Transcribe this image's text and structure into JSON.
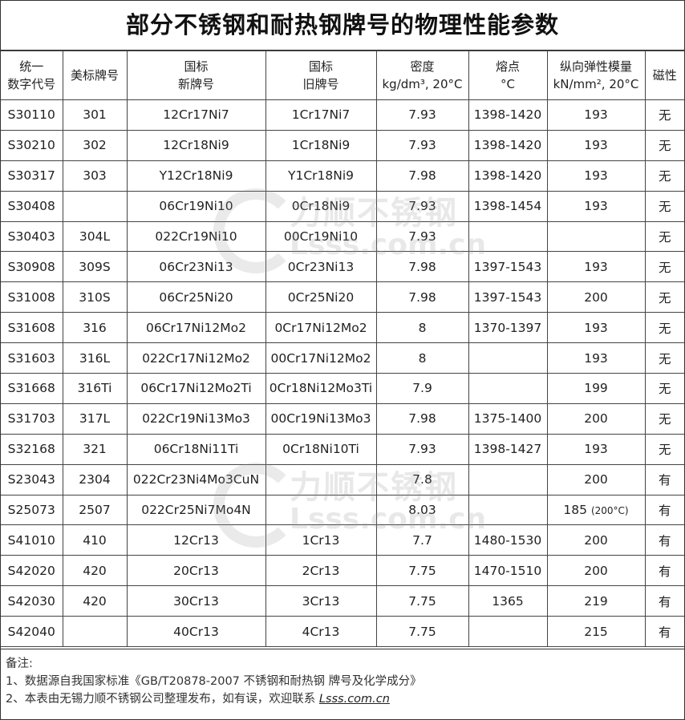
{
  "title": "部分不锈钢和耐热钢牌号的物理性能参数",
  "headers": [
    {
      "l1": "统一",
      "l2": "数字代号"
    },
    {
      "l1": "美标牌号",
      "l2": ""
    },
    {
      "l1": "国标",
      "l2": "新牌号"
    },
    {
      "l1": "国标",
      "l2": "旧牌号"
    },
    {
      "l1": "密度",
      "l2": "kg/dm³, 20°C"
    },
    {
      "l1": "熔点",
      "l2": "°C"
    },
    {
      "l1": "纵向弹性模量",
      "l2": "kN/mm², 20°C"
    },
    {
      "l1": "磁性",
      "l2": ""
    }
  ],
  "rows": [
    [
      "S30110",
      "301",
      "12Cr17Ni7",
      "1Cr17Ni7",
      "7.93",
      "1398-1420",
      "193",
      "无"
    ],
    [
      "S30210",
      "302",
      "12Cr18Ni9",
      "1Cr18Ni9",
      "7.93",
      "1398-1420",
      "193",
      "无"
    ],
    [
      "S30317",
      "303",
      "Y12Cr18Ni9",
      "Y1Cr18Ni9",
      "7.98",
      "1398-1420",
      "193",
      "无"
    ],
    [
      "S30408",
      "",
      "06Cr19Ni10",
      "0Cr18Ni9",
      "7.93",
      "1398-1454",
      "193",
      "无"
    ],
    [
      "S30403",
      "304L",
      "022Cr19Ni10",
      "00Cr19Ni10",
      "7.93",
      "",
      "",
      "无"
    ],
    [
      "S30908",
      "309S",
      "06Cr23Ni13",
      "0Cr23Ni13",
      "7.98",
      "1397-1543",
      "193",
      "无"
    ],
    [
      "S31008",
      "310S",
      "06Cr25Ni20",
      "0Cr25Ni20",
      "7.98",
      "1397-1543",
      "200",
      "无"
    ],
    [
      "S31608",
      "316",
      "06Cr17Ni12Mo2",
      "0Cr17Ni12Mo2",
      "8",
      "1370-1397",
      "193",
      "无"
    ],
    [
      "S31603",
      "316L",
      "022Cr17Ni12Mo2",
      "00Cr17Ni12Mo2",
      "8",
      "",
      "193",
      "无"
    ],
    [
      "S31668",
      "316Ti",
      "06Cr17Ni12Mo2Ti",
      "0Cr18Ni12Mo3Ti",
      "7.9",
      "",
      "199",
      "无"
    ],
    [
      "S31703",
      "317L",
      "022Cr19Ni13Mo3",
      "00Cr19Ni13Mo3",
      "7.98",
      "1375-1400",
      "200",
      "无"
    ],
    [
      "S32168",
      "321",
      "06Cr18Ni11Ti",
      "0Cr18Ni10Ti",
      "7.93",
      "1398-1427",
      "193",
      "无"
    ],
    [
      "S23043",
      "2304",
      "022Cr23Ni4Mo3CuN",
      "",
      "7.8",
      "",
      "200",
      "有"
    ],
    [
      "S25073",
      "2507",
      "022Cr25Ni7Mo4N",
      "",
      "8.03",
      "",
      "185",
      "有"
    ],
    [
      "S41010",
      "410",
      "12Cr13",
      "1Cr13",
      "7.7",
      "1480-1530",
      "200",
      "有"
    ],
    [
      "S42020",
      "420",
      "20Cr13",
      "2Cr13",
      "7.75",
      "1470-1510",
      "200",
      "有"
    ],
    [
      "S42030",
      "420",
      "30Cr13",
      "3Cr13",
      "7.75",
      "1365",
      "219",
      "有"
    ],
    [
      "S42040",
      "",
      "40Cr13",
      "4Cr13",
      "7.75",
      "",
      "215",
      "有"
    ]
  ],
  "s25073_note": "(200°C)",
  "footer": {
    "label": "备注:",
    "line1": "1、数据源自我国家标准《GB/T20878-2007 不锈钢和耐热钢 牌号及化学成分》",
    "line2": "2、本表由无锡力顺不锈钢公司整理发布，如有误，欢迎联系 ",
    "link": "Lsss.com.cn"
  },
  "watermark": {
    "name": "力顺不锈钢",
    "url": "Lsss.com.cn"
  }
}
